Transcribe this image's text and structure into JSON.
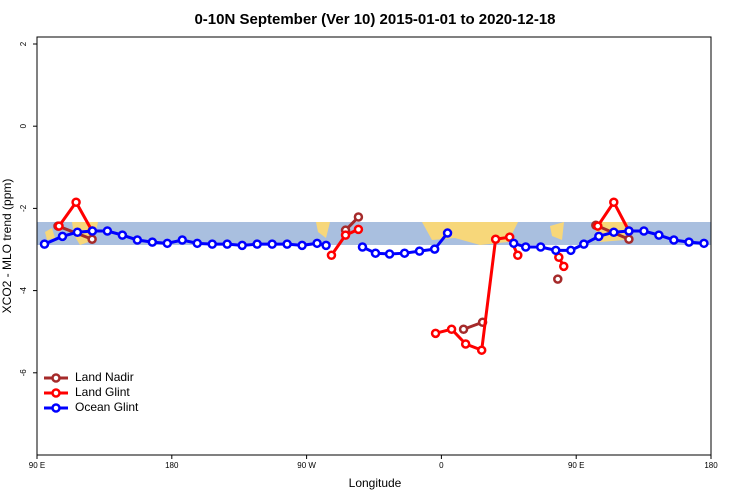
{
  "chart_data": {
    "type": "line",
    "title": "0-10N September (Ver 10)   2015-01-01 to 2020-12-18",
    "x_label": "Longitude",
    "y_label": "XCO2 - MLO trend (ppm)",
    "xlim": [
      90,
      540
    ],
    "xticks": [
      {
        "value": 90,
        "label": "90 E"
      },
      180,
      {
        "value": 270,
        "label": "90 W"
      },
      {
        "value": 360,
        "label": "0"
      },
      {
        "value": 450,
        "label": "90 E"
      },
      {
        "value": 540,
        "label": "180"
      }
    ],
    "ylim": [
      -8,
      2.17
    ],
    "yticks": [
      2,
      0,
      -2,
      -4,
      -6
    ],
    "legend": "bottom-left",
    "series": [
      {
        "name": "Land Nadir",
        "color": "#a52a2a",
        "x": [
          104.0,
          126.8,
          null,
          296.0,
          304.6,
          null,
          374.8,
          387.5,
          null,
          437.7,
          null,
          463.1,
          485.2
        ],
        "values": [
          -2.43,
          -2.75,
          null,
          -2.53,
          -2.21,
          null,
          -4.94,
          -4.77,
          null,
          -3.72,
          null,
          -2.41,
          -2.75
        ]
      },
      {
        "name": "Land Glint",
        "color": "#ff0000",
        "x": [
          104.7,
          116.1,
          126.8,
          null,
          286.6,
          296.0,
          304.6,
          null,
          356.1,
          366.8,
          376.2,
          386.9,
          396.2,
          405.6,
          411.0,
          null,
          438.4,
          441.7,
          null,
          464.4,
          475.1,
          485.2
        ],
        "values": [
          -2.43,
          -1.85,
          -2.55,
          null,
          -3.14,
          -2.65,
          -2.51,
          null,
          -5.04,
          -4.94,
          -5.3,
          -5.45,
          -2.75,
          -2.7,
          -3.14,
          null,
          -3.19,
          -3.41,
          null,
          -2.43,
          -1.85,
          -2.55
        ]
      },
      {
        "name": "Ocean Glint",
        "color": "#0000ff",
        "x": [
          95,
          107,
          117,
          127,
          137,
          147,
          157,
          167,
          177,
          187,
          197,
          207,
          217,
          227,
          237,
          247,
          257,
          267,
          277,
          283,
          null,
          307.3,
          316,
          325.4,
          335.4,
          345.4,
          355.5,
          364.1,
          null,
          408.3,
          416.3,
          426.3,
          436.4,
          446.4,
          455.1,
          465.1,
          475.1,
          485.2,
          495.2,
          505.2,
          515.2,
          525.3,
          535.3
        ],
        "values": [
          -2.87,
          -2.68,
          -2.58,
          -2.55,
          -2.55,
          -2.65,
          -2.77,
          -2.82,
          -2.85,
          -2.77,
          -2.85,
          -2.87,
          -2.87,
          -2.9,
          -2.87,
          -2.87,
          -2.87,
          -2.9,
          -2.85,
          -2.9,
          null,
          -2.94,
          -3.09,
          -3.11,
          -3.09,
          -3.04,
          -2.99,
          -2.6,
          null,
          -2.85,
          -2.94,
          -2.94,
          -3.02,
          -3.02,
          -2.87,
          -2.68,
          -2.58,
          -2.55,
          -2.55,
          -2.65,
          -2.77,
          -2.82,
          -2.85
        ]
      }
    ]
  }
}
